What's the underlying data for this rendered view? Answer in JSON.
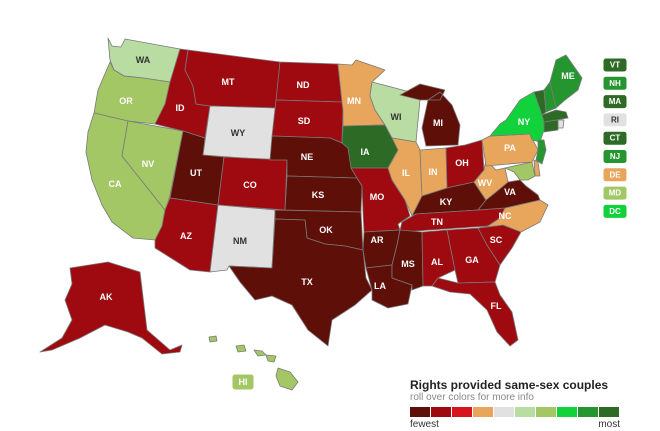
{
  "legend": {
    "title": "Rights provided same-sex couples",
    "subtitle": "roll over colors for more info",
    "low_label": "fewest",
    "high_label": "most",
    "scale": [
      "#5e0f08",
      "#9e0a10",
      "#d8141e",
      "#e8a55c",
      "#e1e1e1",
      "#b8dca2",
      "#a3c764",
      "#12d23c",
      "#25962f",
      "#2c6a26"
    ]
  },
  "states": {
    "WA": {
      "label": "WA",
      "color": "#b8dca2"
    },
    "OR": {
      "label": "OR",
      "color": "#a3c764"
    },
    "CA": {
      "label": "CA",
      "color": "#a3c764"
    },
    "NV": {
      "label": "NV",
      "color": "#a3c764"
    },
    "ID": {
      "label": "ID",
      "color": "#9e0a10"
    },
    "MT": {
      "label": "MT",
      "color": "#9e0a10"
    },
    "WY": {
      "label": "WY",
      "color": "#e1e1e1"
    },
    "UT": {
      "label": "UT",
      "color": "#5e0f08"
    },
    "CO": {
      "label": "CO",
      "color": "#9e0a10"
    },
    "AZ": {
      "label": "AZ",
      "color": "#9e0a10"
    },
    "NM": {
      "label": "NM",
      "color": "#e1e1e1"
    },
    "ND": {
      "label": "ND",
      "color": "#9e0a10"
    },
    "SD": {
      "label": "SD",
      "color": "#9e0a10"
    },
    "NE": {
      "label": "NE",
      "color": "#5e0f08"
    },
    "KS": {
      "label": "KS",
      "color": "#5e0f08"
    },
    "OK": {
      "label": "OK",
      "color": "#5e0f08"
    },
    "TX": {
      "label": "TX",
      "color": "#5e0f08"
    },
    "MN": {
      "label": "MN",
      "color": "#e8a55c"
    },
    "IA": {
      "label": "IA",
      "color": "#2c6a26"
    },
    "MO": {
      "label": "MO",
      "color": "#9e0a10"
    },
    "AR": {
      "label": "AR",
      "color": "#5e0f08"
    },
    "LA": {
      "label": "LA",
      "color": "#5e0f08"
    },
    "WI": {
      "label": "WI",
      "color": "#b8dca2"
    },
    "IL": {
      "label": "IL",
      "color": "#e8a55c"
    },
    "MI": {
      "label": "MI",
      "color": "#5e0f08"
    },
    "IN": {
      "label": "IN",
      "color": "#e8a55c"
    },
    "OH": {
      "label": "OH",
      "color": "#9e0a10"
    },
    "KY": {
      "label": "KY",
      "color": "#5e0f08"
    },
    "TN": {
      "label": "TN",
      "color": "#9e0a10"
    },
    "MS": {
      "label": "MS",
      "color": "#5e0f08"
    },
    "AL": {
      "label": "AL",
      "color": "#9e0a10"
    },
    "GA": {
      "label": "GA",
      "color": "#9e0a10"
    },
    "FL": {
      "label": "FL",
      "color": "#9e0a10"
    },
    "SC": {
      "label": "SC",
      "color": "#9e0a10"
    },
    "NC": {
      "label": "NC",
      "color": "#e8a55c"
    },
    "VA": {
      "label": "VA",
      "color": "#5e0f08"
    },
    "WV": {
      "label": "WV",
      "color": "#e8a55c"
    },
    "PA": {
      "label": "PA",
      "color": "#e8a55c"
    },
    "NY": {
      "label": "NY",
      "color": "#12d23c"
    },
    "ME": {
      "label": "ME",
      "color": "#25962f"
    },
    "AK": {
      "label": "AK",
      "color": "#9e0a10"
    },
    "HI": {
      "label": "HI",
      "color": "#a3c764"
    }
  },
  "northeast_boxes": [
    {
      "label": "VT",
      "color": "#2c6a26"
    },
    {
      "label": "NH",
      "color": "#25962f"
    },
    {
      "label": "MA",
      "color": "#2c6a26"
    },
    {
      "label": "RI",
      "color": "#e1e1e1"
    },
    {
      "label": "CT",
      "color": "#2c6a26"
    },
    {
      "label": "NJ",
      "color": "#25962f"
    },
    {
      "label": "DE",
      "color": "#e8a55c"
    },
    {
      "label": "MD",
      "color": "#a3c764"
    },
    {
      "label": "DC",
      "color": "#12d23c"
    }
  ],
  "small_states": {
    "VT": {
      "color": "#2c6a26"
    },
    "NH": {
      "color": "#25962f"
    },
    "MA": {
      "color": "#2c6a26"
    },
    "RI": {
      "color": "#e1e1e1"
    },
    "CT": {
      "color": "#2c6a26"
    },
    "NJ": {
      "color": "#25962f"
    },
    "DE": {
      "color": "#e8a55c"
    },
    "MD": {
      "color": "#a3c764"
    }
  }
}
